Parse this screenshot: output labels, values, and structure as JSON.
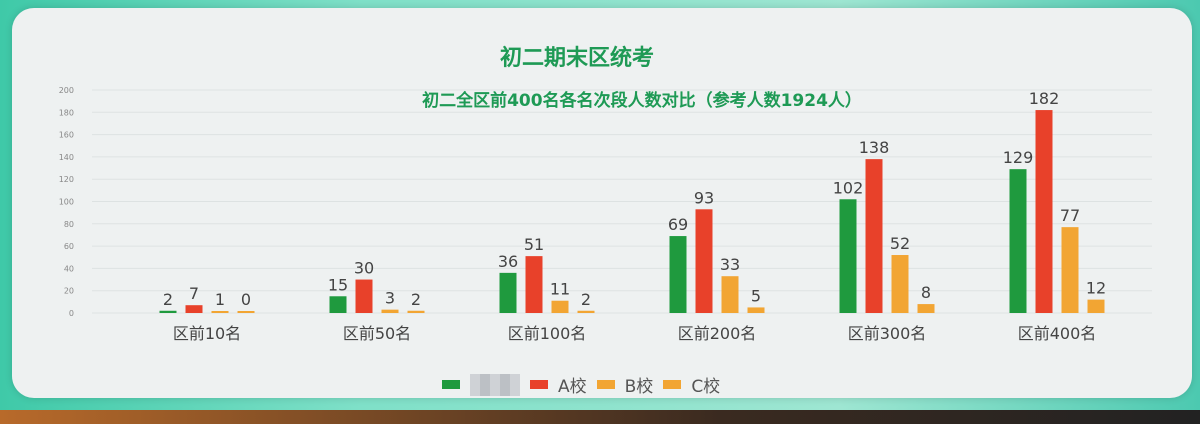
{
  "title": "初二期末区统考",
  "chart_data": {
    "type": "bar",
    "title": "初二全区前400名各名次段人数对比（参考人数1924人）",
    "categories": [
      "区前10名",
      "区前50名",
      "区前100名",
      "区前200名",
      "区前300名",
      "区前400名"
    ],
    "series": [
      {
        "name": "",
        "color": "#1f9a3e",
        "values": [
          2,
          15,
          36,
          69,
          102,
          129
        ]
      },
      {
        "name": "A校",
        "color": "#e8412a",
        "values": [
          7,
          30,
          51,
          93,
          138,
          182
        ]
      },
      {
        "name": "B校",
        "color": "#f2a533",
        "values": [
          1,
          3,
          11,
          33,
          52,
          77
        ]
      },
      {
        "name": "C校",
        "color": "#f2a533",
        "values": [
          0,
          2,
          2,
          5,
          8,
          12
        ]
      }
    ],
    "yticks": [
      "0",
      "20",
      "40",
      "60",
      "80",
      "100",
      "120",
      "140",
      "160",
      "180",
      "200"
    ],
    "ylim": [
      0,
      200
    ],
    "grid": true,
    "legend": "bottom",
    "legend_first_entry_obscured": true
  }
}
